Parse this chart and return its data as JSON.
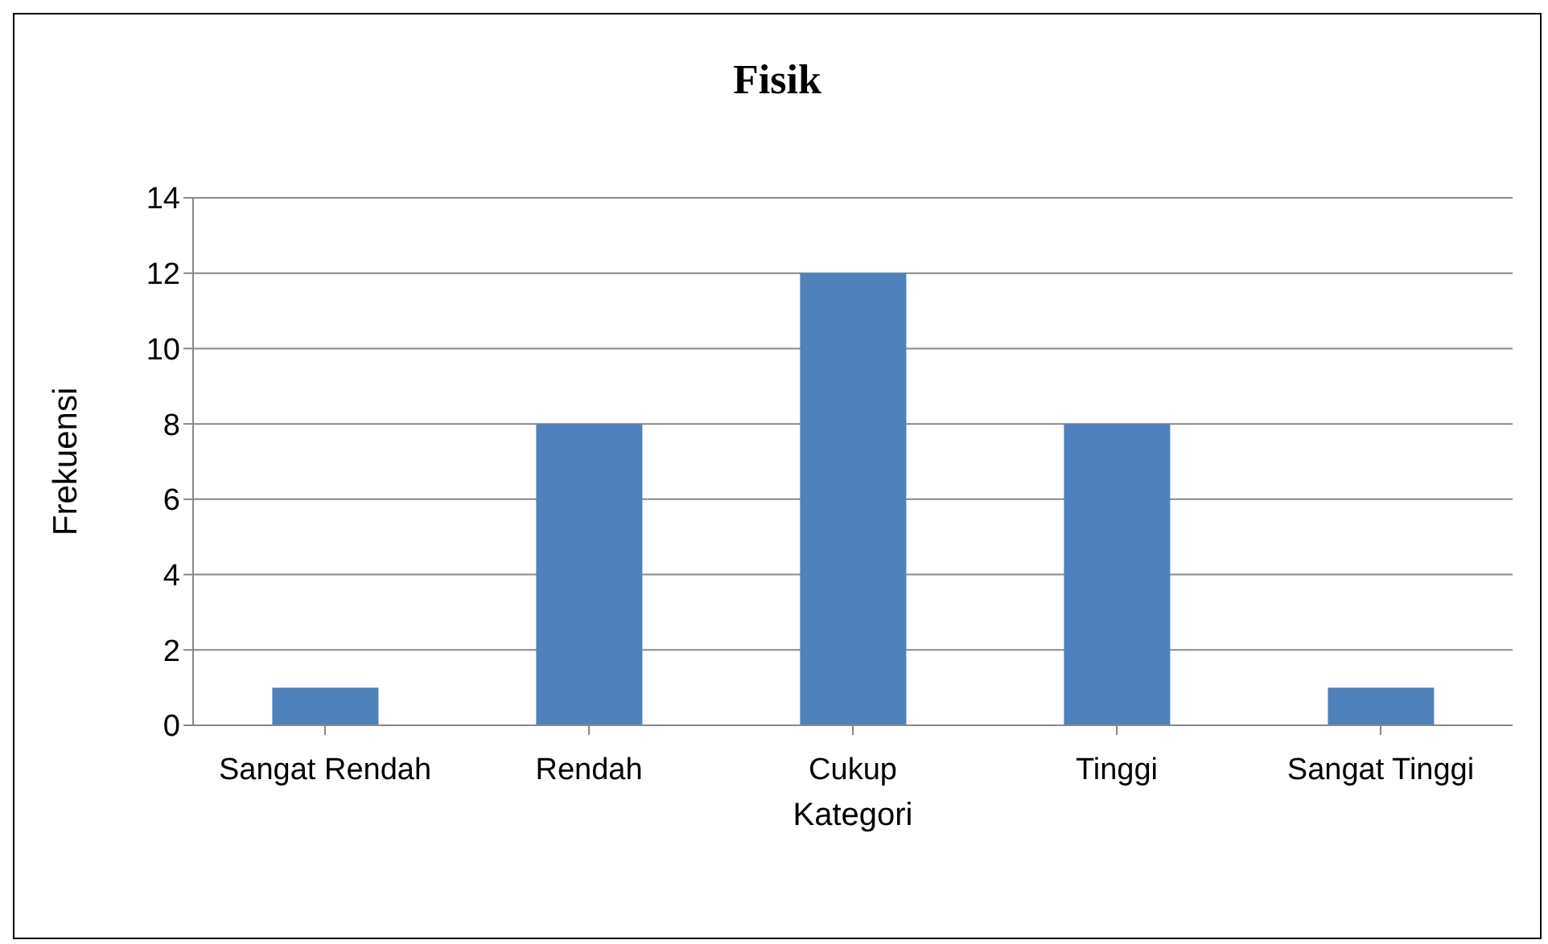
{
  "chart_data": {
    "type": "bar",
    "title": "Fisik",
    "xlabel": "Kategori",
    "ylabel": "Frekuensi",
    "categories": [
      "Sangat Rendah",
      "Rendah",
      "Cukup",
      "Tinggi",
      "Sangat Tinggi"
    ],
    "values": [
      1,
      8,
      12,
      8,
      1
    ],
    "color": "#4f81bd",
    "ylim": [
      0,
      14
    ],
    "yticks": [
      0,
      2,
      4,
      6,
      8,
      10,
      12,
      14
    ],
    "grid": "y",
    "legend": false
  }
}
